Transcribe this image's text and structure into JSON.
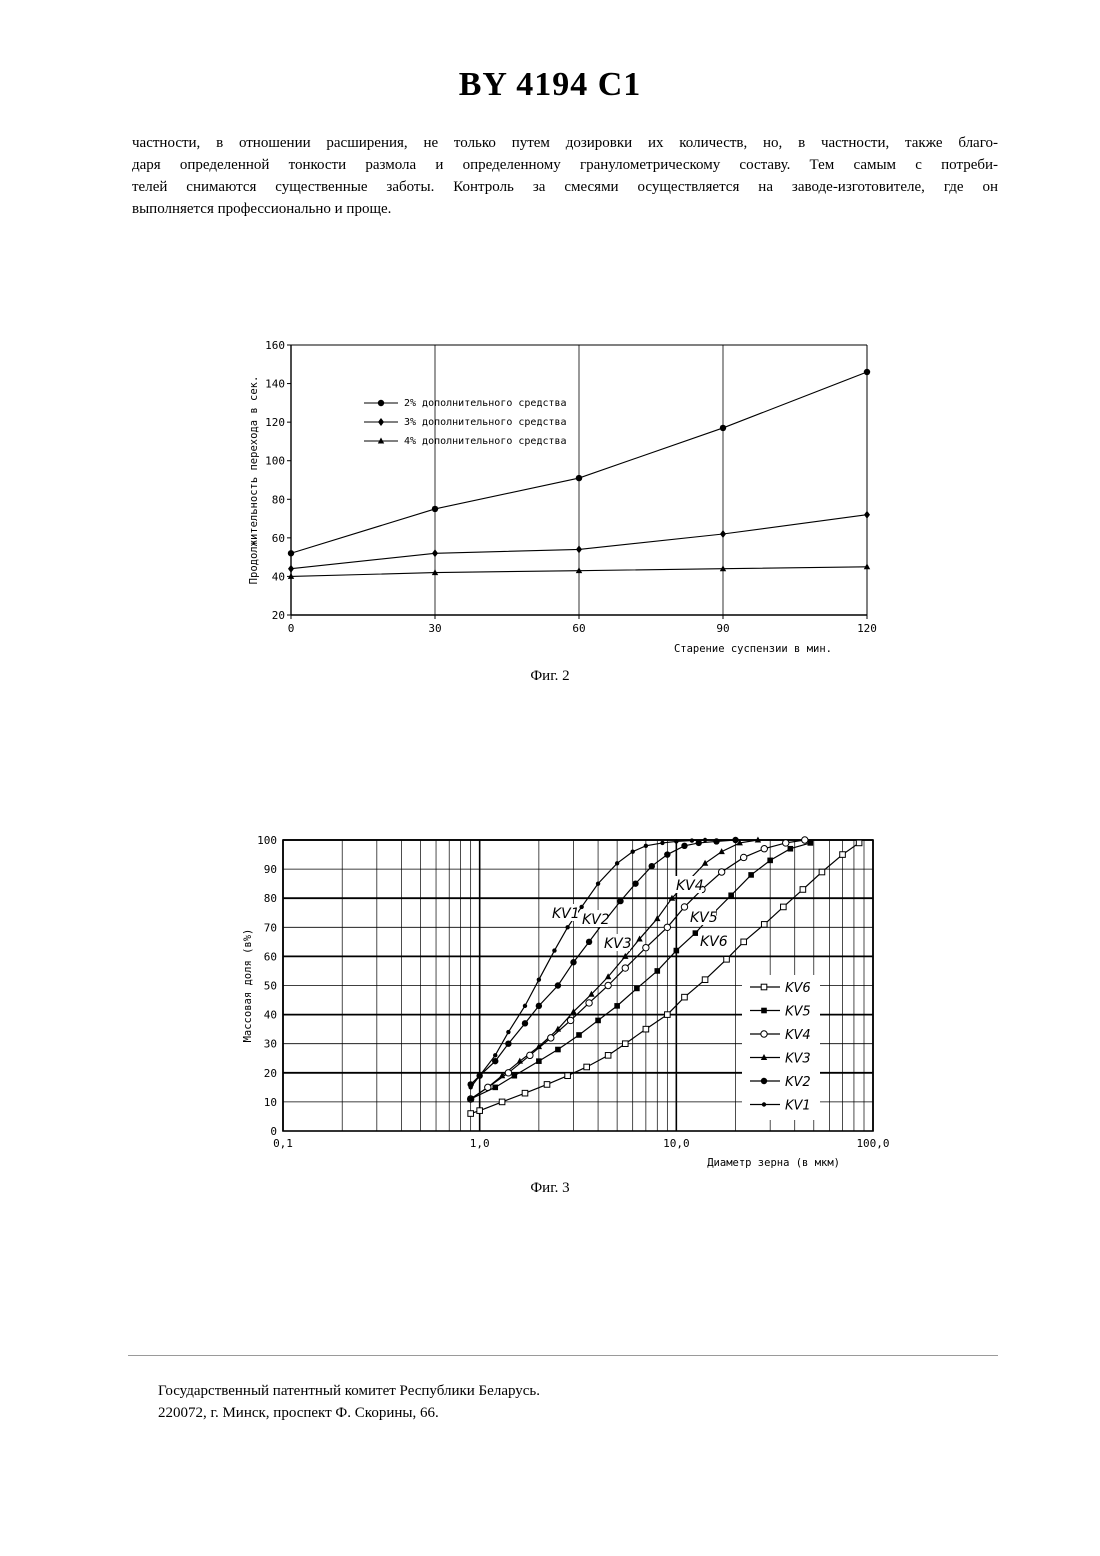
{
  "header": {
    "title": "BY 4194 C1"
  },
  "body_lines": [
    "частности, в отношении расширения, не только путем дозировки их количеств, но, в частности, также благо-",
    "даря определенной тонкости размола и определенному гранулометрическому составу. Тем самым с потреби-",
    "телей снимаются существенные заботы. Контроль за смесями осуществляется на заводе-изготовителе, где он",
    "выполняется профессионально и проще."
  ],
  "figure2": {
    "caption": "Фиг. 2",
    "chart_data": {
      "type": "line",
      "ylabel": "Продолжительность перехода в сек.",
      "xlabel": "Старение суспензии в мин.",
      "x": [
        0,
        30,
        60,
        90,
        120
      ],
      "xticks": [
        "0",
        "30",
        "60",
        "90",
        "120"
      ],
      "yticks": [
        "20",
        "40",
        "60",
        "80",
        "100",
        "120",
        "140",
        "160"
      ],
      "xlim": [
        0,
        120
      ],
      "ylim": [
        20,
        160
      ],
      "grid": "vertical",
      "legend_position": "top-left",
      "series": [
        {
          "name": "2% дополнительного средства",
          "marker": "circle",
          "values": [
            52,
            75,
            91,
            117,
            146
          ]
        },
        {
          "name": "3% дополнительного средства",
          "marker": "diamond",
          "values": [
            44,
            52,
            54,
            62,
            72
          ]
        },
        {
          "name": "4% дополнительного средства",
          "marker": "triangle",
          "values": [
            40,
            42,
            43,
            44,
            45
          ]
        }
      ]
    }
  },
  "figure3": {
    "caption": "Фиг. 3",
    "chart_data": {
      "type": "line",
      "xscale": "log",
      "ylabel": "Массовая доля (в%)",
      "xlabel": "Диаметр зерна (в мкм)",
      "xticks": [
        "0,1",
        "1,0",
        "10,0",
        "100,0"
      ],
      "yticks": [
        "0",
        "10",
        "20",
        "30",
        "40",
        "50",
        "60",
        "70",
        "80",
        "90",
        "100"
      ],
      "xlim": [
        0.1,
        100
      ],
      "ylim": [
        0,
        100
      ],
      "grid": "both",
      "legend_position": "right",
      "series": [
        {
          "name": "KV1",
          "marker": "small-dot",
          "x": [
            0.9,
            1.0,
            1.2,
            1.4,
            1.7,
            2.0,
            2.4,
            2.8,
            3.3,
            4.0,
            5.0,
            6.0,
            7.0,
            8.5,
            10,
            12,
            14
          ],
          "values": [
            15,
            19,
            26,
            34,
            43,
            52,
            62,
            70,
            77,
            85,
            92,
            96,
            98,
            99,
            99.5,
            99.8,
            100
          ]
        },
        {
          "name": "KV2",
          "marker": "filled-circle",
          "x": [
            0.9,
            1.0,
            1.2,
            1.4,
            1.7,
            2.0,
            2.5,
            3.0,
            3.6,
            4.3,
            5.2,
            6.2,
            7.5,
            9,
            11,
            13,
            16,
            20
          ],
          "values": [
            16,
            19,
            24,
            30,
            37,
            43,
            50,
            58,
            65,
            72,
            79,
            85,
            91,
            95,
            98,
            99,
            99.5,
            100
          ]
        },
        {
          "name": "KV3",
          "marker": "filled-triangle",
          "x": [
            0.9,
            1.1,
            1.3,
            1.6,
            2.0,
            2.5,
            3.0,
            3.7,
            4.5,
            5.5,
            6.5,
            8,
            9.5,
            11.5,
            14,
            17,
            21,
            26
          ],
          "values": [
            11,
            15,
            19,
            24,
            29,
            35,
            41,
            47,
            53,
            60,
            66,
            73,
            80,
            86,
            92,
            96,
            99,
            100
          ]
        },
        {
          "name": "KV4",
          "marker": "open-circle",
          "x": [
            0.9,
            1.1,
            1.4,
            1.8,
            2.3,
            2.9,
            3.6,
            4.5,
            5.5,
            7,
            9,
            11,
            13.5,
            17,
            22,
            28,
            36,
            45
          ],
          "values": [
            11,
            15,
            20,
            26,
            32,
            38,
            44,
            50,
            56,
            63,
            70,
            77,
            83,
            89,
            94,
            97,
            99,
            100
          ]
        },
        {
          "name": "KV5",
          "marker": "filled-square",
          "x": [
            0.9,
            1.2,
            1.5,
            2.0,
            2.5,
            3.2,
            4.0,
            5.0,
            6.3,
            8,
            10,
            12.5,
            15.5,
            19,
            24,
            30,
            38,
            48
          ],
          "values": [
            11,
            15,
            19,
            24,
            28,
            33,
            38,
            43,
            49,
            55,
            62,
            68,
            75,
            81,
            88,
            93,
            97,
            99
          ]
        },
        {
          "name": "KV6",
          "marker": "open-square",
          "x": [
            0.9,
            1.0,
            1.3,
            1.7,
            2.2,
            2.8,
            3.5,
            4.5,
            5.5,
            7,
            9,
            11,
            14,
            18,
            22,
            28,
            35,
            44,
            55,
            70,
            85
          ],
          "values": [
            6,
            7,
            10,
            13,
            16,
            19,
            22,
            26,
            30,
            35,
            40,
            46,
            52,
            59,
            65,
            71,
            77,
            83,
            89,
            95,
            99
          ]
        }
      ],
      "annotations": [
        "KV1",
        "KV2",
        "KV3",
        "KV4",
        "KV5",
        "KV6"
      ]
    }
  },
  "footer": {
    "line1": "Государственный патентный комитет Республики Беларусь.",
    "line2": "220072, г. Минск, проспект Ф. Скорины, 66."
  }
}
